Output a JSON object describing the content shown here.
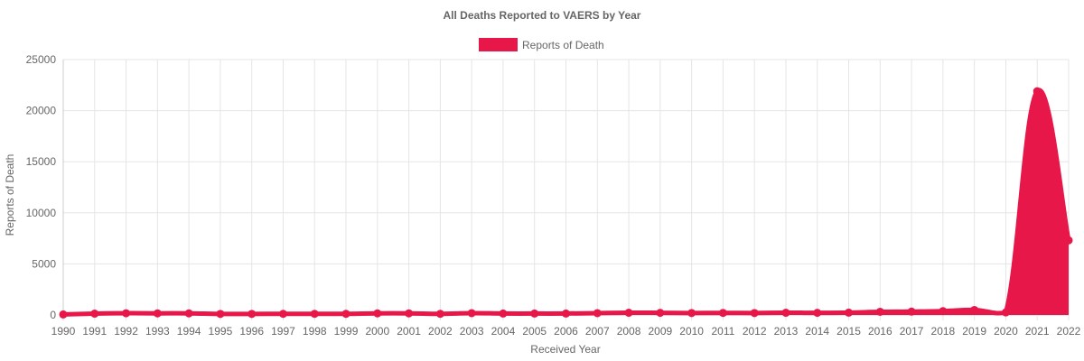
{
  "chart_data": {
    "type": "area",
    "title": "All Deaths Reported to VAERS by Year",
    "xlabel": "Received Year",
    "ylabel": "Reports of Death",
    "ylim": [
      0,
      25000
    ],
    "yticks": [
      0,
      5000,
      10000,
      15000,
      20000,
      25000
    ],
    "grid": true,
    "legend_position": "top",
    "colors": {
      "series": "#e8174a",
      "grid": "#e5e5e5",
      "text": "#666666"
    },
    "categories": [
      "1990",
      "1991",
      "1992",
      "1993",
      "1994",
      "1995",
      "1996",
      "1997",
      "1998",
      "1999",
      "2000",
      "2001",
      "2002",
      "2003",
      "2004",
      "2005",
      "2006",
      "2007",
      "2008",
      "2009",
      "2010",
      "2011",
      "2012",
      "2013",
      "2014",
      "2015",
      "2016",
      "2017",
      "2018",
      "2019",
      "2020",
      "2021",
      "2022"
    ],
    "series": [
      {
        "name": "Reports of Death",
        "values": [
          50,
          130,
          170,
          160,
          160,
          100,
          100,
          110,
          110,
          110,
          160,
          160,
          110,
          180,
          140,
          140,
          140,
          180,
          220,
          210,
          190,
          200,
          190,
          220,
          210,
          230,
          310,
          330,
          380,
          490,
          250,
          21900,
          7300
        ]
      }
    ]
  }
}
